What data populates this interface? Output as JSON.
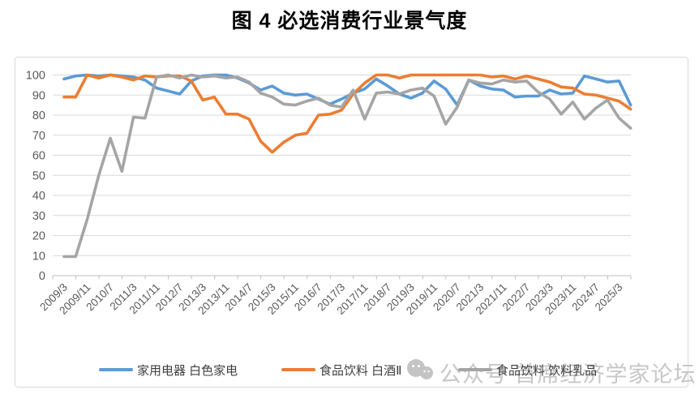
{
  "title": "图 4  必选消费行业景气度",
  "watermark": {
    "icon": "wechat-icon",
    "text": "公众号 首席经济学家论坛"
  },
  "colors": {
    "background": "#FFFFFF",
    "gridline": "#D9D9D9",
    "axis": "#BFBFBF",
    "axis_text": "#595959",
    "legend_text": "#3F3F3F",
    "watermark": "#C7C7C7",
    "title_text": "#000000"
  },
  "chart_data": {
    "type": "line",
    "title": "图 4  必选消费行业景气度",
    "xlabel": "",
    "ylabel": "",
    "ylim": [
      0,
      100
    ],
    "y_ticks": [
      0,
      10,
      20,
      30,
      40,
      50,
      60,
      70,
      80,
      90,
      100
    ],
    "grid": true,
    "legend_position": "bottom",
    "x_tick_labels": [
      "2009/3",
      "2009/11",
      "2010/7",
      "2011/3",
      "2011/11",
      "2012/7",
      "2013/3",
      "2013/11",
      "2014/7",
      "2015/3",
      "2015/11",
      "2016/7",
      "2017/3",
      "2017/11",
      "2018/7",
      "2019/3",
      "2019/11",
      "2020/7",
      "2021/3",
      "2021/11",
      "2022/7",
      "2023/3",
      "2023/11",
      "2024/7",
      "2025/3"
    ],
    "categories": [
      "2009/3",
      "2009/7",
      "2009/11",
      "2010/3",
      "2010/7",
      "2010/11",
      "2011/3",
      "2011/7",
      "2011/11",
      "2012/3",
      "2012/7",
      "2012/11",
      "2013/3",
      "2013/7",
      "2013/11",
      "2014/3",
      "2014/7",
      "2014/11",
      "2015/3",
      "2015/7",
      "2015/11",
      "2016/3",
      "2016/7",
      "2016/11",
      "2017/3",
      "2017/7",
      "2017/11",
      "2018/3",
      "2018/7",
      "2018/11",
      "2019/3",
      "2019/7",
      "2019/11",
      "2020/3",
      "2020/7",
      "2020/11",
      "2021/3",
      "2021/7",
      "2021/11",
      "2022/3",
      "2022/7",
      "2022/11",
      "2023/3",
      "2023/7",
      "2023/11",
      "2024/3",
      "2024/7",
      "2024/11",
      "2025/3",
      "2025/7"
    ],
    "series": [
      {
        "name": "家用电器 白色家电",
        "color": "#5B9BD5",
        "values": [
          98,
          99.5,
          100,
          99.5,
          100,
          99.5,
          99,
          97.5,
          93.5,
          92,
          90.5,
          97,
          99.5,
          100,
          100,
          98.5,
          96,
          92.5,
          94.5,
          91,
          90,
          90.5,
          88,
          85.5,
          88,
          91,
          93,
          98,
          94.5,
          90.5,
          88.5,
          91,
          97,
          93,
          85,
          97.5,
          94.5,
          93,
          92.5,
          89,
          89.5,
          89.5,
          92.5,
          90.5,
          91,
          99.5,
          98,
          96.5,
          97,
          85
        ]
      },
      {
        "name": "食品饮料 白酒Ⅱ",
        "color": "#ED7D31",
        "values": [
          89,
          89,
          100,
          98.5,
          100,
          99,
          97.5,
          99.5,
          99,
          99.5,
          99.5,
          97,
          87.5,
          89,
          80.5,
          80.5,
          78,
          67,
          61.5,
          66.5,
          70,
          71,
          80,
          80.5,
          82.5,
          90.5,
          96,
          100,
          100,
          98.5,
          100,
          100,
          100,
          100,
          100,
          100,
          100,
          99,
          99.5,
          98,
          99.5,
          98,
          96.5,
          94,
          93.5,
          90.5,
          90,
          88.5,
          87,
          83
        ]
      },
      {
        "name": "食品饮料 饮料乳品",
        "color": "#A5A5A5",
        "values": [
          9.5,
          9.5,
          28,
          50,
          68.5,
          52,
          79,
          78.5,
          99,
          100,
          98.5,
          100,
          99,
          99.5,
          98.5,
          99,
          96.5,
          91,
          89,
          85.5,
          85,
          87,
          88.5,
          85,
          84,
          92.5,
          78,
          91,
          91.5,
          90.5,
          92.5,
          93.5,
          89.5,
          75.5,
          84,
          97.5,
          96,
          95.5,
          97.5,
          96.5,
          97,
          91.5,
          88,
          80.5,
          86.5,
          78,
          83.5,
          87.5,
          78.5,
          73.5
        ]
      }
    ]
  }
}
